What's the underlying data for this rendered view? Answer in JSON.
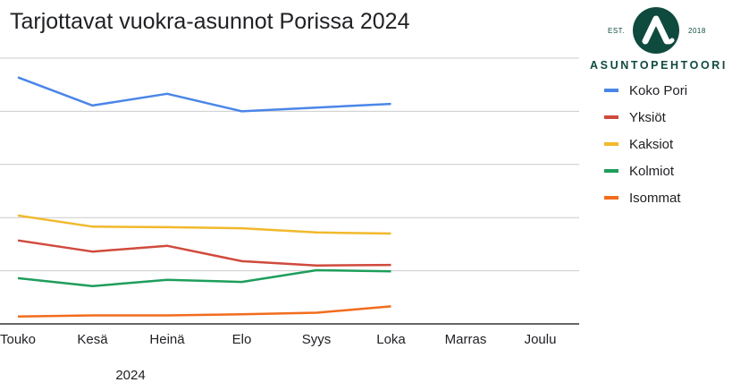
{
  "chart_data": {
    "type": "line",
    "title": "Tarjottavat vuokra-asunnot Porissa 2024",
    "xlabel": "2024",
    "ylabel": "",
    "categories": [
      "Touko",
      "Kesä",
      "Heinä",
      "Elo",
      "Syys",
      "Loka",
      "Marras",
      "Joulu"
    ],
    "ylim": [
      0,
      500
    ],
    "grid": true,
    "legend_position": "right",
    "series": [
      {
        "name": "Koko Pori",
        "color": "#4a86e8",
        "values": [
          464,
          411,
          433,
          400,
          407,
          414,
          null,
          null
        ]
      },
      {
        "name": "Yksiöt",
        "color": "#d04a3c",
        "values": [
          157,
          136,
          147,
          118,
          110,
          111,
          null,
          null
        ]
      },
      {
        "name": "Kaksiot",
        "color": "#f1b92b",
        "values": [
          204,
          183,
          182,
          180,
          172,
          170,
          null,
          null
        ]
      },
      {
        "name": "Kolmiot",
        "color": "#1e9e5c",
        "values": [
          86,
          71,
          83,
          79,
          101,
          99,
          null,
          null
        ]
      },
      {
        "name": "Isommat",
        "color": "#f26c1c",
        "values": [
          14,
          16,
          16,
          18,
          21,
          33,
          null,
          null
        ]
      }
    ]
  },
  "logo": {
    "est": "EST.",
    "year": "2018",
    "name": "ASUNTOPEHTOORI",
    "color": "#0f4a3e"
  }
}
